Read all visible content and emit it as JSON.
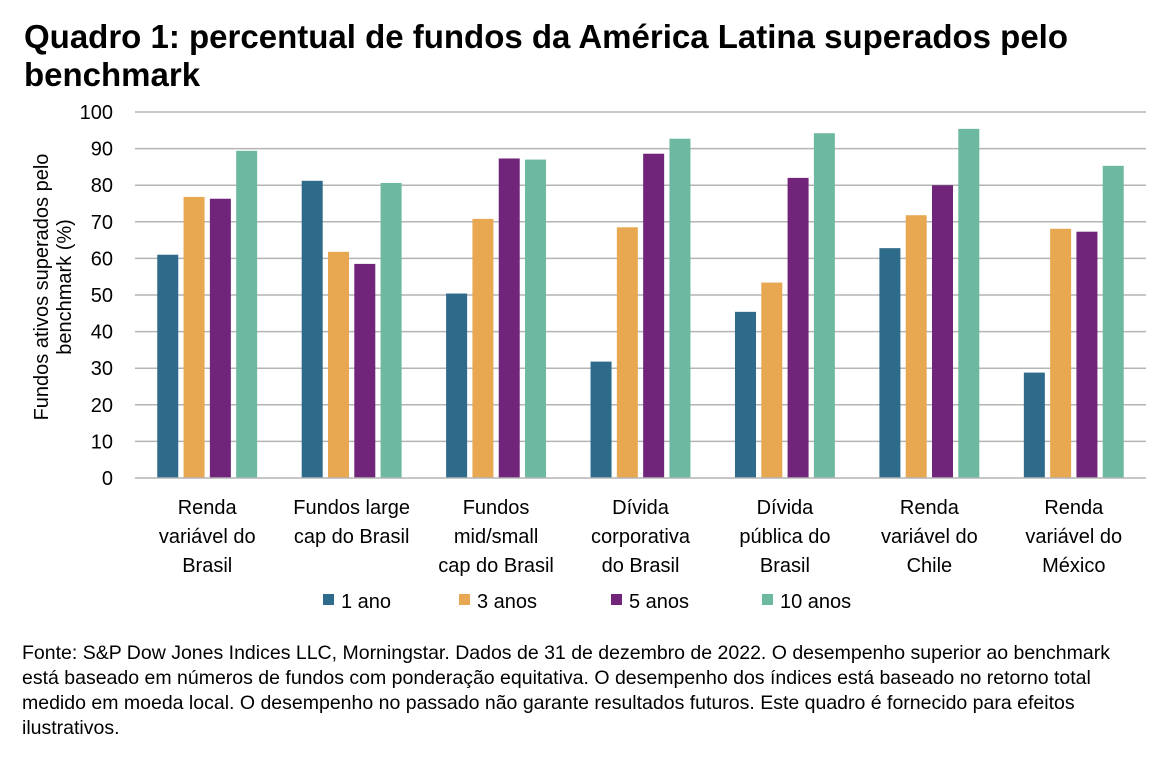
{
  "chart_data": {
    "type": "bar",
    "title": "Quadro 1: percentual de fundos da América Latina superados pelo benchmark",
    "xlabel": "",
    "ylabel": "Fundos ativos superados pelo benchmark (%)",
    "ylabel_lines": [
      "Fundos ativos superados pelo",
      "benchmark (%)"
    ],
    "ylim": [
      0,
      100
    ],
    "yticks": [
      0,
      10,
      20,
      30,
      40,
      50,
      60,
      70,
      80,
      90,
      100
    ],
    "grid": true,
    "legend_position": "bottom",
    "categories": [
      [
        "Renda",
        "variável do",
        "Brasil"
      ],
      [
        "Fundos large",
        "cap do Brasil"
      ],
      [
        "Fundos",
        "mid/small",
        "cap do Brasil"
      ],
      [
        "Dívida",
        "corporativa",
        "do Brasil"
      ],
      [
        "Dívida",
        "pública do",
        "Brasil"
      ],
      [
        "Renda",
        "variável do",
        "Chile"
      ],
      [
        "Renda",
        "variável do",
        "México"
      ]
    ],
    "series": [
      {
        "name": "1 ano",
        "color": "#2E6A8A",
        "values": [
          61.0,
          81.2,
          50.4,
          31.8,
          45.4,
          62.8,
          28.8
        ]
      },
      {
        "name": "3 anos",
        "color": "#E8A852",
        "values": [
          76.8,
          61.8,
          70.8,
          68.5,
          53.4,
          71.8,
          68.1
        ]
      },
      {
        "name": "5 anos",
        "color": "#70257A",
        "values": [
          76.3,
          58.5,
          87.3,
          88.6,
          82.0,
          80.0,
          67.3
        ]
      },
      {
        "name": "10 anos",
        "color": "#6DB8A0",
        "values": [
          89.4,
          80.6,
          87.0,
          92.7,
          94.2,
          95.4,
          85.3
        ]
      }
    ]
  },
  "footnote": "Fonte: S&P Dow Jones Indices LLC, Morningstar. Dados de 31 de dezembro de 2022. O desempenho superior ao benchmark está baseado em números de fundos com ponderação equitativa. O desempenho dos índices está baseado no retorno total medido em moeda local. O desempenho no passado não garante resultados futuros. Este quadro é fornecido para efeitos ilustrativos."
}
